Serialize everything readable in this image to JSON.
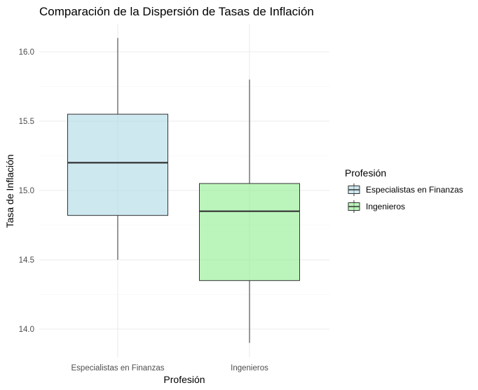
{
  "chart_data": {
    "type": "boxplot",
    "title": "Comparación de la Dispersión de Tasas de Inflación",
    "xlabel": "Profesión",
    "ylabel": "Tasa de Inflación",
    "ylim": [
      13.9,
      16.2
    ],
    "yticks": [
      "14.0",
      "14.5",
      "15.0",
      "15.5",
      "16.0"
    ],
    "ytick_values": [
      14.0,
      14.5,
      15.0,
      15.5,
      16.0
    ],
    "categories": [
      "Especialistas en Finanzas",
      "Ingenieros"
    ],
    "series": [
      {
        "category": "Especialistas en Finanzas",
        "min": 14.5,
        "q1": 14.82,
        "median": 15.2,
        "q3": 15.55,
        "max": 16.1,
        "color": "#add8e6"
      },
      {
        "category": "Ingenieros",
        "min": 13.9,
        "q1": 14.35,
        "median": 14.85,
        "q3": 15.05,
        "max": 15.8,
        "color": "#90ee90"
      }
    ],
    "grid": true,
    "legend": {
      "title": "Profesión",
      "position": "right",
      "entries": [
        "Especialistas en Finanzas",
        "Ingenieros"
      ]
    }
  }
}
